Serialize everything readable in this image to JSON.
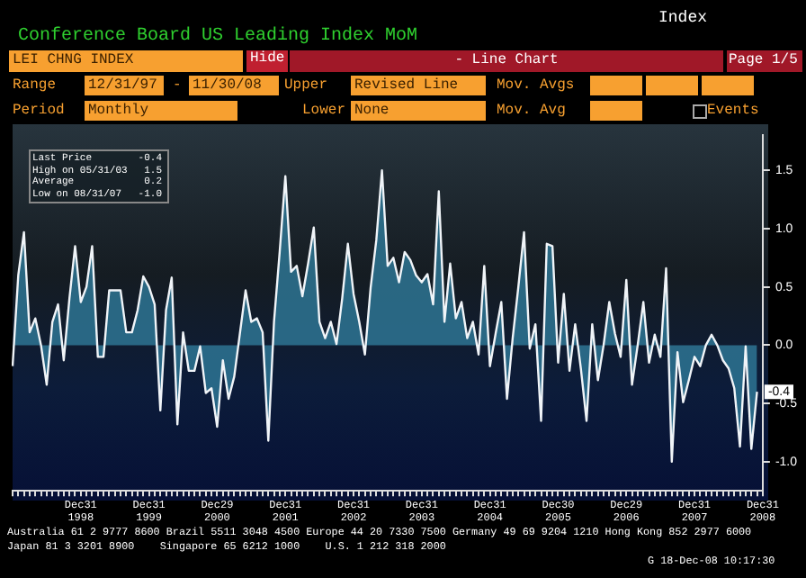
{
  "chart_data": {
    "type": "area",
    "title": "Conference Board US Leading Index MoM",
    "categories": [
      null,
      null,
      null,
      null,
      null,
      null,
      null,
      null,
      null,
      null,
      null,
      null,
      "Dec31 1998",
      null,
      null,
      null,
      null,
      null,
      null,
      null,
      null,
      null,
      null,
      null,
      "Dec31 1999",
      null,
      null,
      null,
      null,
      null,
      null,
      null,
      null,
      null,
      null,
      null,
      "Dec29 2000",
      null,
      null,
      null,
      null,
      null,
      null,
      null,
      null,
      null,
      null,
      null,
      "Dec31 2001",
      null,
      null,
      null,
      null,
      null,
      null,
      null,
      null,
      null,
      null,
      null,
      "Dec31 2002",
      null,
      null,
      null,
      null,
      null,
      null,
      null,
      null,
      null,
      null,
      null,
      "Dec31 2003",
      null,
      null,
      null,
      null,
      null,
      null,
      null,
      null,
      null,
      null,
      null,
      "Dec31 2004",
      null,
      null,
      null,
      null,
      null,
      null,
      null,
      null,
      null,
      null,
      null,
      "Dec30 2005",
      null,
      null,
      null,
      null,
      null,
      null,
      null,
      null,
      null,
      null,
      null,
      "Dec29 2006",
      null,
      null,
      null,
      null,
      null,
      null,
      null,
      null,
      null,
      null,
      null,
      "Dec31 2007",
      null,
      null,
      null,
      null,
      null,
      null,
      null,
      null,
      null,
      null,
      null,
      "Dec31 2008"
    ],
    "series": [
      {
        "color": "#2f7a9a",
        "values": [
          -0.18,
          0.6,
          0.97,
          0.11,
          0.23,
          0.0,
          -0.34,
          0.2,
          0.35,
          -0.13,
          0.4,
          0.85,
          0.37,
          0.5,
          0.85,
          -0.1,
          -0.1,
          0.47,
          0.47,
          0.47,
          0.11,
          0.11,
          0.3,
          0.59,
          0.5,
          0.35,
          -0.56,
          0.3,
          0.58,
          -0.68,
          0.11,
          -0.22,
          -0.22,
          -0.01,
          -0.41,
          -0.37,
          -0.7,
          -0.13,
          -0.46,
          -0.27,
          0.1,
          0.47,
          0.2,
          0.23,
          0.11,
          -0.82,
          0.2,
          0.8,
          1.45,
          0.63,
          0.68,
          0.42,
          0.7,
          1.01,
          0.2,
          0.06,
          0.2,
          0.01,
          0.4,
          0.87,
          0.44,
          0.2,
          -0.08,
          0.49,
          0.9,
          1.5,
          0.68,
          0.75,
          0.54,
          0.8,
          0.73,
          0.6,
          0.54,
          0.61,
          0.35,
          1.32,
          0.2,
          0.7,
          0.23,
          0.37,
          0.06,
          0.2,
          -0.08,
          0.68,
          -0.18,
          0.1,
          0.37,
          -0.46,
          0.06,
          0.5,
          0.97,
          -0.03,
          0.18,
          -0.65,
          0.87,
          0.85,
          -0.15,
          0.44,
          -0.22,
          0.18,
          -0.2,
          -0.65,
          0.18,
          -0.3,
          0.0,
          0.37,
          0.1,
          -0.1,
          0.56,
          -0.34,
          0.0,
          0.37,
          -0.15,
          0.09,
          -0.1,
          0.66,
          -1.0,
          -0.06,
          -0.49,
          -0.3,
          -0.1,
          -0.18,
          0.0,
          0.09,
          0.0,
          -0.13,
          -0.2,
          -0.37,
          -0.87,
          -0.01,
          -0.89,
          -0.4,
          null
        ]
      }
    ],
    "ylim": [
      -1.25,
      1.8
    ],
    "yticks": [
      {
        "value": 1.5,
        "label": "1.5"
      },
      {
        "value": 1.0,
        "label": "1.0"
      },
      {
        "value": 0.5,
        "label": "0.5"
      },
      {
        "value": 0.0,
        "label": "0.0"
      },
      {
        "value": -0.5,
        "label": "-0.5"
      },
      {
        "value": -1.0,
        "label": "-1.0"
      }
    ],
    "grid": false,
    "legend": false,
    "annotations": [
      "Index",
      "LEI CHNG INDEX",
      "Hide",
      "- Line Chart",
      "Page 1/5",
      "Range",
      "12/31/97",
      "-",
      "11/30/08",
      "Upper",
      "Revised Line",
      "Mov. Avgs",
      "Period",
      "Monthly",
      "Lower",
      "None",
      "Mov. Avg",
      "Events",
      "Last Price",
      "-0.4",
      "High on 05/31/03",
      "1.5",
      "Average",
      "0.2",
      "Low on 08/31/07",
      "-1.0",
      {
        "text": "-0.4",
        "y": -0.4
      },
      "Australia 61 2 9777 8600 Brazil 5511 3048 4500 Europe 44 20 7330 7500 Germany 49 69 9204 1210 Hong Kong 852 2977 6000",
      "Japan 81 3 3201 8900    Singapore 65 6212 1000    U.S. 1 212 318 2000",
      "G 18-Dec-08 10:17:30"
    ]
  }
}
